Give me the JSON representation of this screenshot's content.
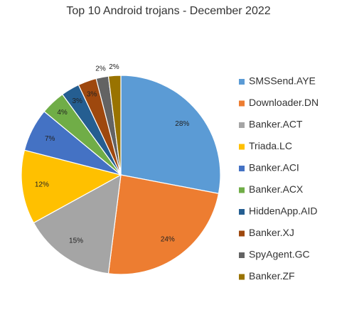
{
  "chart_data": {
    "type": "pie",
    "title": "Top 10 Android trojans - December 2022",
    "categories": [
      "SMSSend.AYE",
      "Downloader.DN",
      "Banker.ACT",
      "Triada.LC",
      "Banker.ACI",
      "Banker.ACX",
      "HiddenApp.AID",
      "Banker.XJ",
      "SpyAgent.GC",
      "Banker.ZF"
    ],
    "values": [
      28,
      24,
      15,
      12,
      7,
      4,
      3,
      3,
      2,
      2
    ],
    "value_labels": [
      "28%",
      "24%",
      "15%",
      "12%",
      "7%",
      "4%",
      "3%",
      "3%",
      "2%",
      "2%"
    ],
    "colors": [
      "#5b9bd5",
      "#ed7d31",
      "#a5a5a5",
      "#ffc000",
      "#4472c4",
      "#70ad47",
      "#255e91",
      "#9e480e",
      "#636363",
      "#997300"
    ],
    "legend": "right"
  }
}
